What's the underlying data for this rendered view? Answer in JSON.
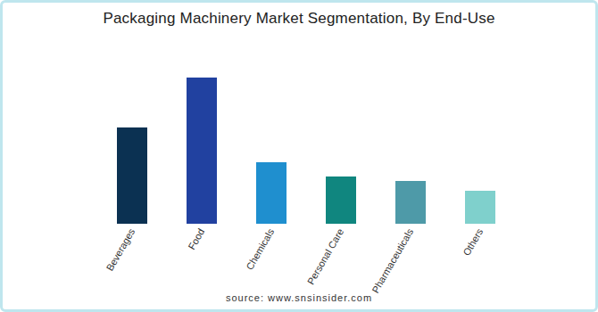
{
  "chart_data": {
    "type": "bar",
    "title": "Packaging Machinery Market Segmentation, By End-Use",
    "categories": [
      "Beverages",
      "Food",
      "Chemicals",
      "Personal Care",
      "Pharmaceuticals",
      "Others"
    ],
    "values": [
      108,
      164,
      69,
      53,
      48,
      37
    ],
    "colors": [
      "#0b3152",
      "#2141a0",
      "#1f8fcf",
      "#10867f",
      "#4e9aa8",
      "#7fd0cc"
    ],
    "ylim": [
      0,
      170
    ],
    "tick_labels": "x",
    "grid": false,
    "source": "source: www.snsinsider.com"
  }
}
